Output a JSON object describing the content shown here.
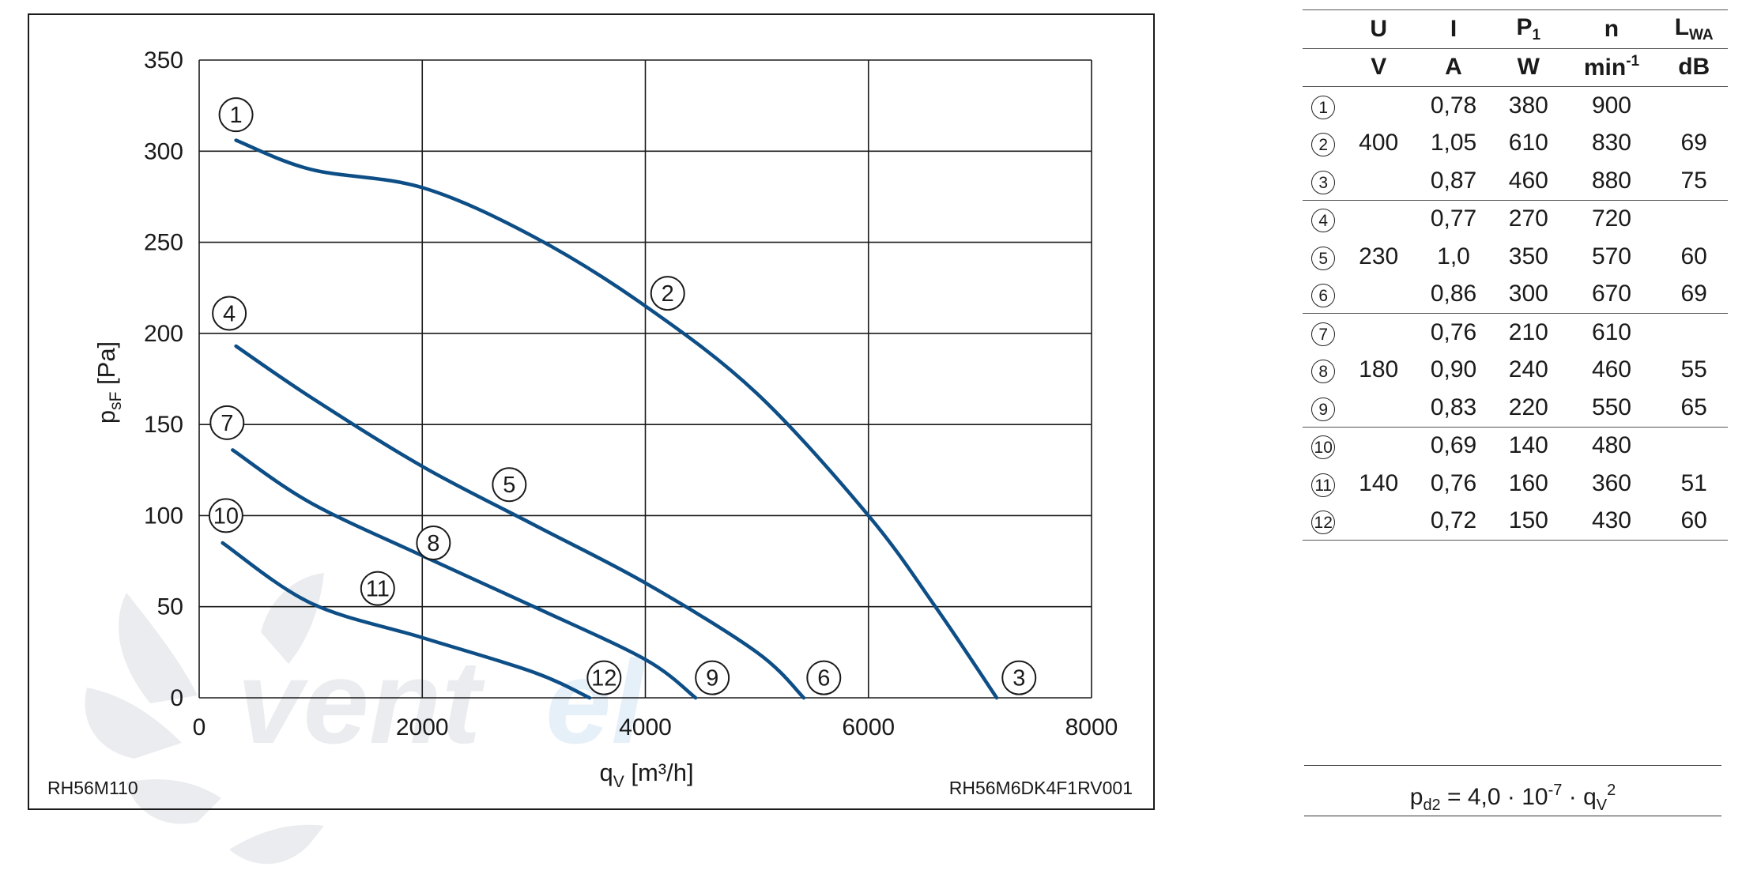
{
  "chart_data": {
    "type": "line",
    "title": "",
    "xlabel": "q",
    "xlabel_sub": "V",
    "xlabel_unit": "[m³/h]",
    "ylabel": "p",
    "ylabel_sub": "sF",
    "ylabel_unit": "[Pa]",
    "xlim": [
      0,
      8000
    ],
    "ylim": [
      0,
      350
    ],
    "xticks": [
      "0",
      "2000",
      "4000",
      "6000",
      "8000"
    ],
    "yticks": [
      "0",
      "50",
      "100",
      "150",
      "200",
      "250",
      "300",
      "350"
    ],
    "grid": true,
    "model_left": "RH56M110",
    "model_right": "RH56M6DK4F1RV001",
    "line_color": "#0d4e86",
    "series": [
      {
        "name": "1-2-3",
        "start_label": "1",
        "mid_label": "2",
        "end_label": "3",
        "points": [
          [
            330,
            306
          ],
          [
            1000,
            290
          ],
          [
            2000,
            280
          ],
          [
            3000,
            253
          ],
          [
            4000,
            215
          ],
          [
            5000,
            167
          ],
          [
            6000,
            100
          ],
          [
            6600,
            50
          ],
          [
            7150,
            0
          ]
        ],
        "label_points": {
          "start": [
            330,
            320
          ],
          "mid": [
            4200,
            222
          ],
          "end": [
            7350,
            11
          ]
        }
      },
      {
        "name": "4-5-6",
        "start_label": "4",
        "mid_label": "5",
        "end_label": "6",
        "points": [
          [
            330,
            193
          ],
          [
            1000,
            165
          ],
          [
            2000,
            127
          ],
          [
            3000,
            95
          ],
          [
            4000,
            63
          ],
          [
            5000,
            25
          ],
          [
            5420,
            0
          ]
        ],
        "label_points": {
          "start": [
            270,
            211
          ],
          "mid": [
            2780,
            117
          ],
          "end": [
            5600,
            11
          ]
        }
      },
      {
        "name": "7-8-9",
        "start_label": "7",
        "mid_label": "8",
        "end_label": "9",
        "points": [
          [
            300,
            136
          ],
          [
            1000,
            107
          ],
          [
            2000,
            78
          ],
          [
            3000,
            50
          ],
          [
            4000,
            21
          ],
          [
            4450,
            0
          ]
        ],
        "label_points": {
          "start": [
            250,
            151
          ],
          "mid": [
            2100,
            85
          ],
          "end": [
            4600,
            11
          ]
        }
      },
      {
        "name": "10-11-12",
        "start_label": "10",
        "mid_label": "11",
        "end_label": "12",
        "points": [
          [
            210,
            85
          ],
          [
            1000,
            52
          ],
          [
            2000,
            33
          ],
          [
            3000,
            14
          ],
          [
            3500,
            0
          ]
        ],
        "label_points": {
          "start": [
            240,
            100
          ],
          "mid": [
            1600,
            60
          ],
          "end": [
            3630,
            11
          ]
        }
      }
    ]
  },
  "table": {
    "headers": [
      {
        "main": "U",
        "sub": ""
      },
      {
        "main": "I",
        "sub": ""
      },
      {
        "main": "P",
        "sub": "1"
      },
      {
        "main": "n",
        "sub": ""
      },
      {
        "main": "L",
        "sub": "WA"
      }
    ],
    "units": [
      {
        "main": "V",
        "sup": ""
      },
      {
        "main": "A",
        "sup": ""
      },
      {
        "main": "W",
        "sup": ""
      },
      {
        "main": "min",
        "sup": "-1"
      },
      {
        "main": "dB",
        "sup": ""
      }
    ],
    "rows": [
      {
        "num": "1",
        "U": "",
        "I": "0,78",
        "P1": "380",
        "n": "900",
        "LWA": ""
      },
      {
        "num": "2",
        "U": "400",
        "I": "1,05",
        "P1": "610",
        "n": "830",
        "LWA": "69"
      },
      {
        "num": "3",
        "U": "",
        "I": "0,87",
        "P1": "460",
        "n": "880",
        "LWA": "75"
      },
      {
        "num": "4",
        "U": "",
        "I": "0,77",
        "P1": "270",
        "n": "720",
        "LWA": ""
      },
      {
        "num": "5",
        "U": "230",
        "I": "1,0",
        "P1": "350",
        "n": "570",
        "LWA": "60"
      },
      {
        "num": "6",
        "U": "",
        "I": "0,86",
        "P1": "300",
        "n": "670",
        "LWA": "69"
      },
      {
        "num": "7",
        "U": "",
        "I": "0,76",
        "P1": "210",
        "n": "610",
        "LWA": ""
      },
      {
        "num": "8",
        "U": "180",
        "I": "0,90",
        "P1": "240",
        "n": "460",
        "LWA": "55"
      },
      {
        "num": "9",
        "U": "",
        "I": "0,83",
        "P1": "220",
        "n": "550",
        "LWA": "65"
      },
      {
        "num": "10",
        "U": "",
        "I": "0,69",
        "P1": "140",
        "n": "480",
        "LWA": ""
      },
      {
        "num": "11",
        "U": "140",
        "I": "0,76",
        "P1": "160",
        "n": "360",
        "LWA": "51"
      },
      {
        "num": "12",
        "U": "",
        "I": "0,72",
        "P1": "150",
        "n": "430",
        "LWA": "60"
      }
    ]
  },
  "formula": {
    "lhs": "p",
    "lhs_sub": "d2",
    "equals": " = 4,0 · 10",
    "exp": "-7",
    "dot": " · q",
    "q_sub": "V",
    "q_sup": "2"
  },
  "watermark": {
    "brand": "Ventel",
    "color": "#d6dfe8"
  }
}
